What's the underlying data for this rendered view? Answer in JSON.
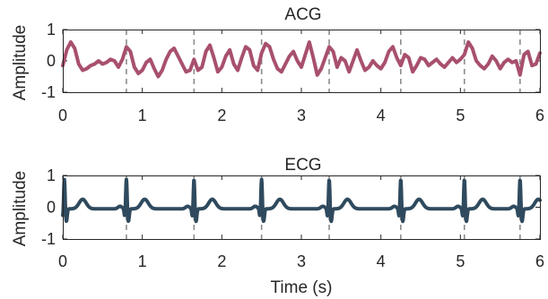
{
  "chart_data": [
    {
      "type": "line",
      "title": "ACG",
      "ylabel": "Amplitude",
      "xlabel": "",
      "xlim": [
        0,
        6
      ],
      "ylim": [
        -1,
        1
      ],
      "xticks": [
        0,
        1,
        2,
        3,
        4,
        5,
        6
      ],
      "yticks": [
        1,
        0,
        -1
      ],
      "color": "#a8506e",
      "beat_markers": [
        0.8,
        1.65,
        2.5,
        3.35,
        4.25,
        5.05,
        5.75
      ],
      "series": [
        {
          "x": [
            0.0,
            0.05,
            0.1,
            0.15,
            0.2,
            0.25,
            0.3,
            0.35,
            0.4,
            0.45,
            0.5,
            0.55,
            0.6,
            0.65,
            0.7,
            0.75,
            0.8,
            0.85,
            0.9,
            0.95,
            1.0,
            1.05,
            1.1,
            1.15,
            1.2,
            1.25,
            1.3,
            1.35,
            1.4,
            1.45,
            1.5,
            1.55,
            1.6,
            1.65,
            1.7,
            1.75,
            1.8,
            1.85,
            1.9,
            1.95,
            2.0,
            2.05,
            2.1,
            2.15,
            2.2,
            2.25,
            2.3,
            2.35,
            2.4,
            2.45,
            2.5,
            2.55,
            2.6,
            2.65,
            2.7,
            2.75,
            2.8,
            2.85,
            2.9,
            2.95,
            3.0,
            3.05,
            3.1,
            3.15,
            3.2,
            3.25,
            3.3,
            3.35,
            3.4,
            3.45,
            3.5,
            3.55,
            3.6,
            3.65,
            3.7,
            3.75,
            3.8,
            3.85,
            3.9,
            3.95,
            4.0,
            4.05,
            4.1,
            4.15,
            4.2,
            4.25,
            4.3,
            4.35,
            4.4,
            4.45,
            4.5,
            4.55,
            4.6,
            4.65,
            4.7,
            4.75,
            4.8,
            4.85,
            4.9,
            4.95,
            5.0,
            5.05,
            5.1,
            5.15,
            5.2,
            5.25,
            5.3,
            5.35,
            5.4,
            5.45,
            5.5,
            5.55,
            5.6,
            5.65,
            5.7,
            5.75,
            5.8,
            5.85,
            5.9,
            5.95,
            6.0
          ],
          "y": [
            -0.15,
            0.35,
            0.6,
            0.4,
            -0.1,
            -0.3,
            -0.25,
            -0.15,
            -0.1,
            0.0,
            -0.1,
            -0.05,
            0.05,
            0.0,
            -0.2,
            0.05,
            0.45,
            0.3,
            -0.2,
            -0.4,
            -0.3,
            -0.05,
            0.05,
            -0.25,
            -0.5,
            -0.3,
            0.05,
            0.3,
            0.4,
            0.15,
            -0.1,
            -0.35,
            -0.3,
            0.05,
            -0.3,
            -0.2,
            0.3,
            0.5,
            0.1,
            -0.35,
            -0.2,
            0.15,
            0.35,
            -0.1,
            -0.3,
            0.1,
            0.45,
            0.35,
            -0.15,
            -0.3,
            0.25,
            0.55,
            0.45,
            0.05,
            -0.25,
            -0.35,
            -0.1,
            0.15,
            0.3,
            0.0,
            -0.2,
            0.2,
            0.6,
            0.1,
            -0.45,
            -0.25,
            0.1,
            0.45,
            0.3,
            -0.2,
            0.1,
            0.0,
            -0.35,
            0.0,
            0.35,
            0.0,
            -0.3,
            -0.2,
            0.0,
            -0.15,
            -0.25,
            -0.05,
            0.3,
            0.45,
            0.1,
            -0.15,
            0.2,
            0.1,
            -0.35,
            -0.15,
            0.1,
            0.05,
            -0.15,
            -0.05,
            0.05,
            -0.1,
            -0.2,
            -0.05,
            0.1,
            -0.05,
            0.05,
            0.2,
            0.6,
            0.4,
            0.0,
            -0.15,
            -0.25,
            -0.1,
            0.15,
            0.0,
            -0.25,
            -0.05,
            0.05,
            -0.05,
            0.0,
            -0.45,
            0.2,
            0.3,
            -0.15,
            -0.1,
            0.25
          ]
        }
      ]
    },
    {
      "type": "line",
      "title": "ECG",
      "ylabel": "Amplitude",
      "xlabel": "Time (s)",
      "xlim": [
        0,
        6
      ],
      "ylim": [
        -1,
        1
      ],
      "xticks": [
        0,
        1,
        2,
        3,
        4,
        5,
        6
      ],
      "yticks": [
        1,
        0,
        -1
      ],
      "color": "#2f4a5e",
      "beat_markers": [
        0.8,
        1.65,
        2.5,
        3.35,
        4.25,
        5.05,
        5.75
      ],
      "beat_times": [
        0.02,
        0.8,
        1.65,
        2.5,
        3.35,
        4.25,
        5.05,
        5.75
      ]
    }
  ]
}
